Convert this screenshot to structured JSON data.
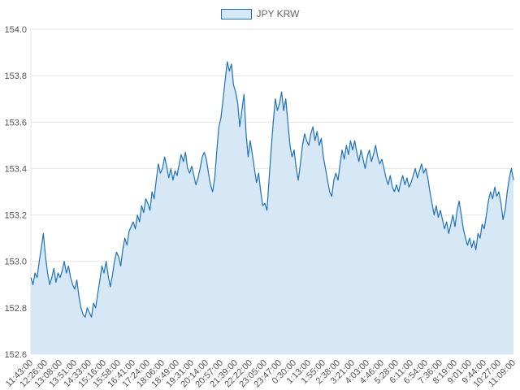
{
  "chart_data": {
    "type": "area",
    "legend": "JPY KRW",
    "ylim": [
      152.6,
      154.0
    ],
    "yticks": [
      152.6,
      152.8,
      153.0,
      153.2,
      153.4,
      153.6,
      153.8,
      154.0
    ],
    "categories": [
      "11:43:00",
      "12:26:00",
      "13:08:00",
      "13:51:00",
      "14:33:00",
      "15:16:00",
      "15:58:00",
      "16:41:00",
      "17:24:00",
      "18:06:00",
      "18:49:00",
      "19:31:00",
      "20:14:00",
      "20:57:00",
      "21:39:00",
      "22:22:00",
      "23:05:00",
      "23:47:00",
      "0:30:00",
      "1:13:00",
      "1:55:00",
      "2:38:00",
      "3:21:00",
      "4:03:00",
      "4:46:00",
      "5:28:00",
      "6:11:00",
      "6:54:00",
      "7:36:00",
      "8:19:00",
      "9:01:00",
      "9:44:00",
      "10:27:00",
      "11:09:00"
    ],
    "values": [
      152.93,
      152.9,
      152.95,
      152.93,
      153.0,
      153.06,
      153.12,
      153.02,
      152.95,
      152.9,
      152.93,
      152.97,
      152.91,
      152.95,
      152.93,
      152.96,
      153.0,
      152.95,
      152.98,
      152.93,
      152.9,
      152.88,
      152.92,
      152.85,
      152.8,
      152.77,
      152.76,
      152.8,
      152.78,
      152.76,
      152.82,
      152.8,
      152.86,
      152.92,
      152.98,
      152.95,
      153.0,
      152.94,
      152.89,
      152.94,
      153.0,
      153.04,
      153.02,
      152.98,
      153.05,
      153.1,
      153.07,
      153.13,
      153.15,
      153.17,
      153.14,
      153.2,
      153.17,
      153.24,
      153.21,
      153.27,
      153.25,
      153.22,
      153.3,
      153.27,
      153.35,
      153.42,
      153.38,
      153.4,
      153.45,
      153.41,
      153.36,
      153.4,
      153.35,
      153.39,
      153.37,
      153.42,
      153.46,
      153.43,
      153.47,
      153.4,
      153.38,
      153.41,
      153.37,
      153.33,
      153.36,
      153.4,
      153.45,
      153.47,
      153.44,
      153.38,
      153.33,
      153.3,
      153.36,
      153.48,
      153.58,
      153.62,
      153.7,
      153.78,
      153.86,
      153.82,
      153.85,
      153.76,
      153.73,
      153.68,
      153.58,
      153.65,
      153.72,
      153.55,
      153.45,
      153.52,
      153.46,
      153.4,
      153.34,
      153.38,
      153.3,
      153.24,
      153.25,
      153.22,
      153.35,
      153.48,
      153.6,
      153.7,
      153.65,
      153.68,
      153.73,
      153.65,
      153.7,
      153.6,
      153.5,
      153.45,
      153.48,
      153.4,
      153.35,
      153.42,
      153.5,
      153.55,
      153.52,
      153.5,
      153.55,
      153.58,
      153.52,
      153.56,
      153.5,
      153.53,
      153.45,
      153.4,
      153.35,
      153.3,
      153.28,
      153.35,
      153.38,
      153.35,
      153.42,
      153.48,
      153.44,
      153.5,
      153.46,
      153.52,
      153.48,
      153.52,
      153.47,
      153.43,
      153.48,
      153.44,
      153.4,
      153.45,
      153.48,
      153.43,
      153.46,
      153.5,
      153.45,
      153.42,
      153.44,
      153.4,
      153.36,
      153.33,
      153.37,
      153.32,
      153.3,
      153.33,
      153.3,
      153.34,
      153.37,
      153.33,
      153.36,
      153.32,
      153.34,
      153.37,
      153.4,
      153.36,
      153.39,
      153.42,
      153.38,
      153.4,
      153.36,
      153.3,
      153.25,
      153.2,
      153.24,
      153.19,
      153.22,
      153.18,
      153.14,
      153.17,
      153.12,
      153.16,
      153.2,
      153.15,
      153.22,
      153.26,
      153.2,
      153.14,
      153.1,
      153.07,
      153.1,
      153.06,
      153.09,
      153.05,
      153.12,
      153.1,
      153.16,
      153.14,
      153.2,
      153.26,
      153.3,
      153.27,
      153.32,
      153.28,
      153.3,
      153.25,
      153.18,
      153.22,
      153.3,
      153.36,
      153.4,
      153.35
    ],
    "colors": {
      "line": "#1f72b8",
      "fill": "#d6e7f6",
      "grid": "#e5e5e5",
      "tick_text": "#545454",
      "legend_text": "#666666"
    },
    "legend_position": "top",
    "grid": "horizontal-only"
  }
}
